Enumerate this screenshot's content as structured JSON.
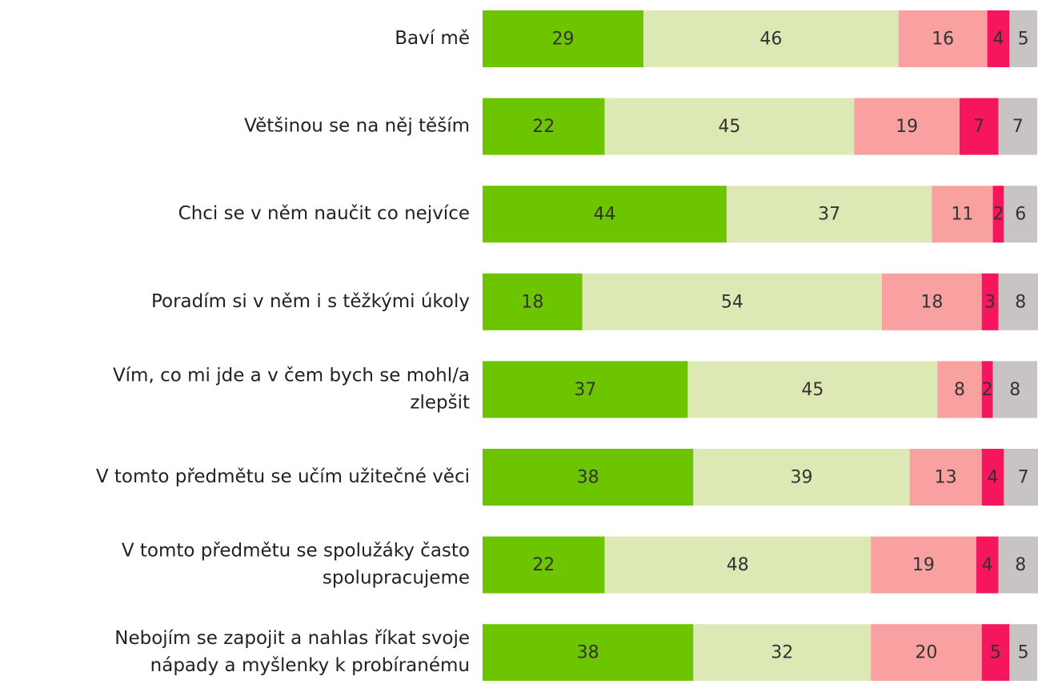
{
  "chart_data": {
    "type": "bar",
    "orientation": "horizontal",
    "stacked": true,
    "categories": [
      [
        "Baví mě"
      ],
      [
        "Většinou se na něj těším"
      ],
      [
        "Chci se v něm naučit co nejvíce"
      ],
      [
        "Poradím si v něm i s těžkými úkoly"
      ],
      [
        "Vím, co mi jde a v čem bych se mohl/a",
        "zlepšit"
      ],
      [
        "V tomto předmětu se učím užitečné věci"
      ],
      [
        "V tomto předmětu se spolužáky často",
        "spolupracujeme"
      ],
      [
        "Nebojím se zapojit a nahlas říkat svoje",
        "nápady a myšlenky k probíranému"
      ]
    ],
    "series": [
      {
        "color": "#6dc400",
        "values": [
          29,
          22,
          44,
          18,
          37,
          38,
          22,
          38
        ]
      },
      {
        "color": "#dde9b5",
        "values": [
          46,
          45,
          37,
          54,
          45,
          39,
          48,
          32
        ]
      },
      {
        "color": "#f9a0a0",
        "values": [
          16,
          19,
          11,
          18,
          8,
          13,
          19,
          20
        ]
      },
      {
        "color": "#f5165d",
        "values": [
          4,
          7,
          2,
          3,
          2,
          4,
          4,
          5
        ]
      },
      {
        "color": "#c8c4c4",
        "values": [
          5,
          7,
          6,
          8,
          8,
          7,
          8,
          5
        ]
      }
    ],
    "xlim": [
      0,
      100
    ]
  }
}
